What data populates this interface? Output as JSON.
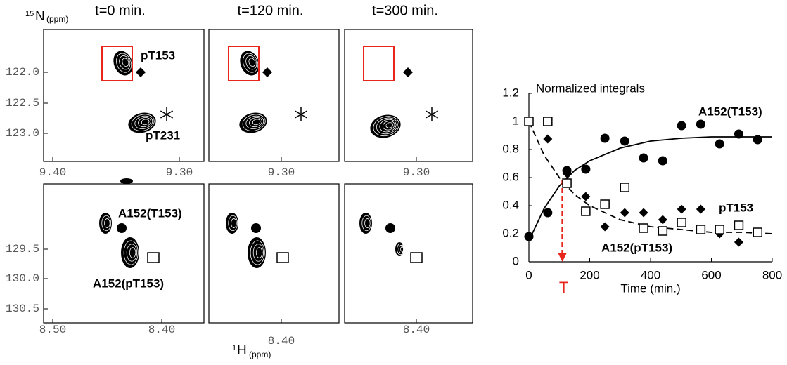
{
  "chart_data": {
    "type": "scatter",
    "title": "Normalized integrals",
    "x_label": "Time (min.)",
    "x": [
      0,
      62,
      125,
      187,
      250,
      315,
      377,
      440,
      502,
      565,
      627,
      690,
      752
    ],
    "series": [
      {
        "name": "A152(T153)",
        "marker": "circle",
        "color": "#000000",
        "values": [
          0.18,
          0.35,
          0.65,
          0.66,
          0.88,
          0.86,
          0.74,
          0.72,
          0.97,
          0.98,
          0.84,
          0.91,
          0.87
        ]
      },
      {
        "name": "pT153",
        "marker": "diamond",
        "color": "#000000",
        "values": [
          1.0,
          0.875,
          0.63,
          0.465,
          0.25,
          0.35,
          0.35,
          0.3,
          0.375,
          0.375,
          0.2,
          0.14,
          0.21
        ]
      },
      {
        "name": "A152(pT153)",
        "marker": "square",
        "color": "#000000",
        "values": [
          1.0,
          1.0,
          0.56,
          0.36,
          0.41,
          0.53,
          0.24,
          0.22,
          0.28,
          0.23,
          0.23,
          0.26,
          0.21
        ]
      }
    ],
    "fit_x": [
      0,
      50,
      100,
      150,
      200,
      300,
      400,
      500,
      600,
      700,
      800
    ],
    "fits": [
      {
        "style": "solid",
        "values": [
          0.15,
          0.38,
          0.54,
          0.65,
          0.72,
          0.81,
          0.86,
          0.88,
          0.89,
          0.89,
          0.89
        ]
      },
      {
        "style": "dashed",
        "values": [
          1.0,
          0.76,
          0.6,
          0.48,
          0.4,
          0.3,
          0.25,
          0.23,
          0.21,
          0.21,
          0.2
        ]
      }
    ],
    "marker_line": {
      "x": 110,
      "y": 0.58,
      "label": "T",
      "color": "#e8261c"
    },
    "xlim": [
      0,
      800
    ],
    "xticks": [
      0,
      200,
      400,
      600,
      800
    ],
    "ylim": [
      0,
      1.2
    ],
    "yticks": [
      0,
      0.2,
      0.4,
      0.6,
      0.8,
      1,
      1.2
    ]
  },
  "spectra": {
    "columns": [
      "t=0 min.",
      "t=120 min.",
      "t=300 min."
    ],
    "y_label": {
      "sup": "15",
      "main": "N",
      "unit": "(ppm)"
    },
    "x_label": {
      "sup": "1",
      "main": "H",
      "unit": "(ppm)"
    },
    "top_yticks": [
      "122.0",
      "122.5",
      "123.0"
    ],
    "bottom_yticks": [
      "129.5",
      "130.0",
      "130.5"
    ],
    "top_xticks": [
      [
        "9.40",
        "9.30"
      ],
      [
        "9.30"
      ],
      [
        "9.30"
      ]
    ],
    "bottom_xticks": [
      [
        "8.50",
        "8.40"
      ],
      [
        "8.40"
      ],
      [
        "8.40"
      ]
    ],
    "labels": {
      "pT153": "pT153",
      "pT231": "pT231",
      "A152_T153": "A152(T153)",
      "A152_pT153": "A152(pT153)"
    }
  }
}
